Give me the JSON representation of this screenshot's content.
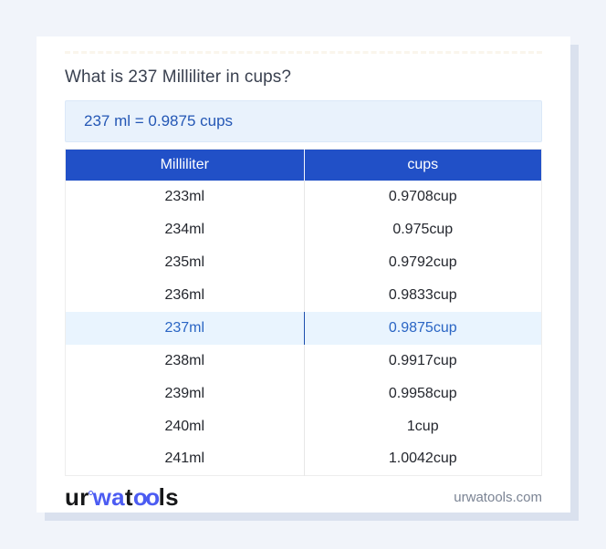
{
  "page": {
    "question": "What is 237 Milliliter in cups?",
    "result": "237 ml = 0.9875 cups"
  },
  "table": {
    "columns": [
      "Milliliter",
      "cups"
    ],
    "highlighted_index": 4,
    "rows": [
      {
        "ml": "233ml",
        "cups": "0.9708cup"
      },
      {
        "ml": "234ml",
        "cups": "0.975cup"
      },
      {
        "ml": "235ml",
        "cups": "0.9792cup"
      },
      {
        "ml": "236ml",
        "cups": "0.9833cup"
      },
      {
        "ml": "237ml",
        "cups": "0.9875cup"
      },
      {
        "ml": "238ml",
        "cups": "0.9917cup"
      },
      {
        "ml": "239ml",
        "cups": "0.9958cup"
      },
      {
        "ml": "240ml",
        "cups": "1cup"
      },
      {
        "ml": "241ml",
        "cups": "1.0042cup"
      }
    ]
  },
  "footer": {
    "logo": {
      "ur": "ur",
      "wa": "wa",
      "t": "t",
      "oo": "oo",
      "ls": "ls"
    },
    "site": "urwatools.com"
  },
  "colors": {
    "background": "#f1f4fa",
    "card": "#ffffff",
    "card_shadow": "#dae1ee",
    "title_text": "#3a4150",
    "result_bg": "#e9f2fc",
    "result_border": "#dbe8f8",
    "result_text": "#2457b5",
    "header_bg": "#2150c7",
    "header_text": "#ffffff",
    "cell_text": "#24272e",
    "row_divider": "#e7e7e7",
    "table_border": "#ededed",
    "highlight_bg": "#e9f4fe",
    "highlight_text": "#2a65c4",
    "highlight_divider": "#1d4fae",
    "logo_dark": "#17181a",
    "logo_blue": "#4c5cf2",
    "site_text": "#7b8494"
  }
}
